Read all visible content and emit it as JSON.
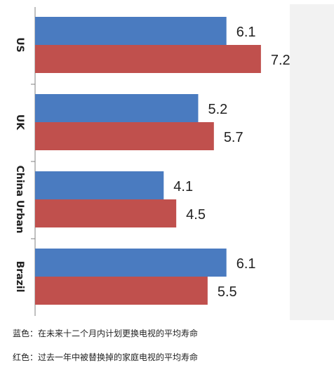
{
  "chart_data": {
    "type": "bar",
    "orientation": "horizontal",
    "categories": [
      "US",
      "UK",
      "China Urban",
      "Brazil"
    ],
    "series": [
      {
        "name": "",
        "values": [
          6.1,
          5.2,
          4.1,
          6.1
        ]
      },
      {
        "name": "",
        "values": [
          7.2,
          5.7,
          4.5,
          5.5
        ]
      }
    ],
    "xlim": [
      0,
      8.5
    ],
    "data_labels": true,
    "grid": false,
    "colors": [
      "#4a7bc0",
      "#c0504d"
    ]
  },
  "captions": {
    "blue": "蓝色：在未来十二个月内计划更换电视的平均寿命",
    "red": "红色：过去一年中被替换掉的家庭电视的平均寿命"
  }
}
